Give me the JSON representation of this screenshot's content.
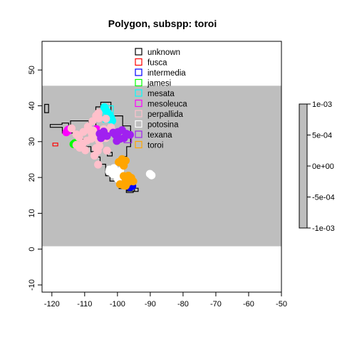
{
  "chart_data": {
    "type": "scatter",
    "title": "Polygon, subspp: toroi",
    "xlabel": "",
    "ylabel": "",
    "xlim": [
      -123,
      -50
    ],
    "ylim": [
      -12,
      58
    ],
    "x_ticks": [
      -120,
      -110,
      -100,
      -90,
      -80,
      -70,
      -60,
      -50
    ],
    "y_ticks": [
      -10,
      0,
      10,
      20,
      30,
      40,
      50
    ],
    "x_tick_labels": [
      "-120",
      "-110",
      "-100",
      "-90",
      "-80",
      "-70",
      "-60",
      "-50"
    ],
    "y_tick_labels": [
      "-10",
      "0",
      "10",
      "20",
      "30",
      "40",
      "50"
    ],
    "raster_extent": {
      "xmin": -123,
      "xmax": -50,
      "ymin": 0.8,
      "ymax": 45.6
    },
    "raster_value": 0,
    "raster_color": "#bebebe",
    "legend_position": "top-center",
    "colorbar": {
      "min": -0.001,
      "max": 0.001,
      "ticks": [
        0.001,
        0.0005,
        0,
        -0.0005,
        -0.001
      ],
      "tick_labels": [
        "1e-03",
        "5e-04",
        "0e+00",
        "-5e-04",
        "-1e-03"
      ],
      "color": "#bebebe"
    },
    "series": [
      {
        "name": "unknown",
        "color": "#000000",
        "points": []
      },
      {
        "name": "fusca",
        "color": "#ff0000",
        "points": []
      },
      {
        "name": "intermedia",
        "color": "#0000ff",
        "points": [
          [
            -96.2,
            17.3
          ],
          [
            -95.5,
            17.6
          ]
        ]
      },
      {
        "name": "jamesi",
        "color": "#00ff00",
        "points": [
          [
            -113.4,
            29.3
          ],
          [
            -113.0,
            29.6
          ]
        ]
      },
      {
        "name": "mesata",
        "color": "#00ffff",
        "points": [
          [
            -104.0,
            39.6
          ],
          [
            -103.6,
            38.9
          ],
          [
            -103.0,
            38.2
          ],
          [
            -102.5,
            37.5
          ],
          [
            -101.9,
            36.6
          ],
          [
            -101.6,
            35.8
          ]
        ]
      },
      {
        "name": "mesoleuca",
        "color": "#ff00ff",
        "points": [
          [
            -115.6,
            32.6
          ],
          [
            -115.1,
            33.3
          ],
          [
            -114.6,
            33.5
          ],
          [
            -106.4,
            33.5
          ],
          [
            -105.7,
            32.9
          ],
          [
            -105.9,
            31.8
          ]
        ]
      },
      {
        "name": "perpallida",
        "color": "#ffc0cb",
        "points": [
          [
            -114.0,
            33.7
          ],
          [
            -112.5,
            32.0
          ],
          [
            -111.7,
            31.2
          ],
          [
            -111.5,
            28.3
          ],
          [
            -110.5,
            29.5
          ],
          [
            -109.8,
            27.6
          ],
          [
            -107.0,
            26.1
          ],
          [
            -106.0,
            27.4
          ],
          [
            -109.0,
            34.2
          ],
          [
            -107.6,
            35.7
          ],
          [
            -106.5,
            37.2
          ],
          [
            -105.8,
            38.0
          ],
          [
            -103.5,
            36.4
          ],
          [
            -102.0,
            34.0
          ],
          [
            -104.2,
            33.5
          ],
          [
            -103.2,
            32.9
          ],
          [
            -107.8,
            32.2
          ],
          [
            -108.0,
            30.8
          ],
          [
            -106.5,
            31.2
          ],
          [
            -105.6,
            30.2
          ],
          [
            -104.5,
            31.8
          ],
          [
            -103.6,
            31.0
          ],
          [
            -112.5,
            29.1
          ],
          [
            -109.3,
            30.3
          ],
          [
            -107.4,
            33.1
          ],
          [
            -110.4,
            32.7
          ],
          [
            -105.9,
            23.6
          ],
          [
            -106.5,
            28.2
          ],
          [
            -105.5,
            28.8
          ],
          [
            -103.2,
            27.5
          ],
          [
            -108.8,
            33.3
          ],
          [
            -105.7,
            36.5
          ]
        ]
      },
      {
        "name": "potosina",
        "color": "#ffffff",
        "points": [
          [
            -102.5,
            21.6
          ],
          [
            -101.4,
            20.9
          ],
          [
            -100.5,
            21.0
          ],
          [
            -99.2,
            21.8
          ],
          [
            -101.1,
            22.6
          ],
          [
            -102.4,
            22.2
          ],
          [
            -99.9,
            19.6
          ],
          [
            -89.6,
            20.6
          ],
          [
            -90.1,
            21.0
          ]
        ]
      },
      {
        "name": "texana",
        "color": "#a020f0",
        "points": [
          [
            -105.4,
            32.2
          ],
          [
            -104.2,
            32.8
          ],
          [
            -103.2,
            31.6
          ],
          [
            -105.0,
            31.0
          ],
          [
            -100.6,
            31.9
          ],
          [
            -99.8,
            32.7
          ],
          [
            -98.6,
            33.2
          ],
          [
            -97.3,
            32.2
          ],
          [
            -96.2,
            31.9
          ],
          [
            -99.2,
            30.8
          ],
          [
            -100.2,
            30.2
          ],
          [
            -101.3,
            32.5
          ],
          [
            -98.0,
            31.0
          ]
        ]
      },
      {
        "name": "toroi",
        "color": "#ffa500",
        "points": [
          [
            -99.6,
            24.3
          ],
          [
            -98.6,
            25.1
          ],
          [
            -97.5,
            24.7
          ],
          [
            -98.1,
            23.3
          ],
          [
            -96.7,
            20.5
          ],
          [
            -95.8,
            19.9
          ],
          [
            -95.2,
            18.9
          ],
          [
            -96.7,
            18.7
          ],
          [
            -97.5,
            19.6
          ],
          [
            -98.1,
            20.4
          ],
          [
            -99.2,
            18.1
          ],
          [
            -98.2,
            17.8
          ],
          [
            -97.5,
            17.7
          ]
        ]
      }
    ],
    "polygons": [
      {
        "color": "#000000",
        "points": [
          [
            -122.2,
            38.1
          ],
          [
            -122.2,
            40.4
          ],
          [
            -121.0,
            40.4
          ],
          [
            -121.0,
            38.1
          ]
        ]
      },
      {
        "color": "#000000",
        "points": [
          [
            -120.5,
            34.8
          ],
          [
            -120.5,
            34.0
          ],
          [
            -116.8,
            34.0
          ],
          [
            -116.8,
            32.4
          ],
          [
            -114.3,
            32.4
          ],
          [
            -114.3,
            35.8
          ],
          [
            -108.7,
            35.8
          ],
          [
            -108.7,
            33.9
          ],
          [
            -106.6,
            33.9
          ],
          [
            -106.6,
            39.7
          ],
          [
            -105.1,
            39.7
          ],
          [
            -105.1,
            41.0
          ],
          [
            -102.0,
            41.0
          ],
          [
            -102.0,
            37.2
          ],
          [
            -98.4,
            37.2
          ],
          [
            -98.4,
            34.4
          ],
          [
            -96.0,
            34.4
          ],
          [
            -96.0,
            28.6
          ],
          [
            -97.2,
            28.6
          ],
          [
            -97.2,
            25.8
          ],
          [
            -99.0,
            25.8
          ],
          [
            -99.0,
            17.2
          ],
          [
            -97.0,
            17.2
          ],
          [
            -97.0,
            16.2
          ],
          [
            -94.8,
            16.2
          ],
          [
            -94.8,
            17.0
          ],
          [
            -93.7,
            17.0
          ],
          [
            -93.7,
            16.1
          ],
          [
            -95.2,
            16.1
          ],
          [
            -95.2,
            15.8
          ],
          [
            -97.3,
            15.8
          ],
          [
            -97.3,
            16.9
          ],
          [
            -99.5,
            16.9
          ],
          [
            -99.5,
            19.0
          ],
          [
            -102.3,
            19.0
          ],
          [
            -102.3,
            20.5
          ],
          [
            -103.6,
            20.5
          ],
          [
            -103.6,
            23.7
          ],
          [
            -105.3,
            23.7
          ],
          [
            -105.3,
            25.7
          ],
          [
            -106.7,
            25.7
          ],
          [
            -106.7,
            27.2
          ],
          [
            -108.1,
            27.2
          ],
          [
            -108.1,
            28.6
          ],
          [
            -109.6,
            28.6
          ],
          [
            -109.6,
            30.6
          ],
          [
            -111.9,
            30.6
          ],
          [
            -111.9,
            32.4
          ],
          [
            -114.9,
            32.4
          ],
          [
            -114.9,
            35.2
          ],
          [
            -116.9,
            35.2
          ],
          [
            -116.9,
            34.8
          ],
          [
            -120.5,
            34.8
          ]
        ]
      },
      {
        "color": "#000000",
        "points": [
          [
            -103.1,
            27.0
          ],
          [
            -103.1,
            26.0
          ],
          [
            -101.6,
            26.0
          ],
          [
            -101.6,
            27.0
          ]
        ]
      },
      {
        "color": "#ff0000",
        "points": [
          [
            -119.7,
            28.8
          ],
          [
            -118.2,
            28.8
          ],
          [
            -118.2,
            29.6
          ],
          [
            -119.7,
            29.6
          ]
        ]
      },
      {
        "color": "#0000ff",
        "points": [
          [
            -96.8,
            17.2
          ],
          [
            -94.8,
            17.2
          ],
          [
            -94.8,
            17.7
          ],
          [
            -96.8,
            17.7
          ]
        ]
      },
      {
        "color": "#00ff00",
        "points": [
          [
            -113.6,
            29.1
          ],
          [
            -112.8,
            29.1
          ],
          [
            -112.8,
            29.8
          ],
          [
            -113.6,
            29.8
          ]
        ]
      },
      {
        "color": "#00ffff",
        "points": [
          [
            -104.4,
            40.0
          ],
          [
            -101.3,
            40.0
          ],
          [
            -101.3,
            35.4
          ],
          [
            -104.4,
            35.4
          ]
        ]
      },
      {
        "color": "#ff00ff",
        "points": [
          [
            -115.9,
            32.2
          ],
          [
            -114.2,
            32.2
          ],
          [
            -114.2,
            33.9
          ],
          [
            -115.9,
            33.9
          ]
        ]
      },
      {
        "color": "#a020f0",
        "points": [
          [
            -98.0,
            29.7
          ],
          [
            -95.7,
            29.7
          ],
          [
            -95.7,
            31.4
          ],
          [
            -98.0,
            31.4
          ]
        ]
      }
    ]
  }
}
